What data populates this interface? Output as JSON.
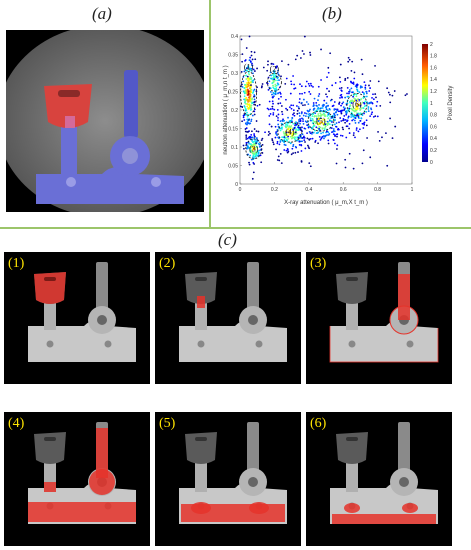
{
  "panel_a_label": "(a)",
  "panel_b_label": "(b)",
  "panel_c_label": "(c)",
  "chart_data": {
    "type": "scatter",
    "xlabel": "X-ray attenuation ( μ_m,X t_m )",
    "ylabel": "neutron attenuation ( μ_m,n t_m )",
    "xlim": [
      0,
      1
    ],
    "ylim": [
      0,
      0.4
    ],
    "xticks": [
      "0",
      "0.2",
      "0.4",
      "0.6",
      "0.8",
      "1"
    ],
    "yticks": [
      "0",
      "0.05",
      "0.1",
      "0.15",
      "0.2",
      "0.25",
      "0.3",
      "0.35",
      "0.4"
    ],
    "colorbar_label": "Pixel Density",
    "colorbar_ticks": [
      "0",
      "0.2",
      "0.4",
      "0.6",
      "0.8",
      "1",
      "1.2",
      "1.4",
      "1.6",
      "1.8",
      "2"
    ],
    "clusters": [
      {
        "label": "(1)",
        "x": 0.05,
        "y": 0.245
      },
      {
        "label": "(2)",
        "x": 0.2,
        "y": 0.275
      },
      {
        "label": "(3)",
        "x": 0.08,
        "y": 0.095
      },
      {
        "label": "(4)",
        "x": 0.29,
        "y": 0.14
      },
      {
        "label": "(5)",
        "x": 0.47,
        "y": 0.17
      },
      {
        "label": "(6)",
        "x": 0.68,
        "y": 0.215
      }
    ]
  },
  "tiles": [
    {
      "label": "(1)"
    },
    {
      "label": "(2)"
    },
    {
      "label": "(3)"
    },
    {
      "label": "(4)"
    },
    {
      "label": "(5)"
    },
    {
      "label": "(6)"
    }
  ]
}
